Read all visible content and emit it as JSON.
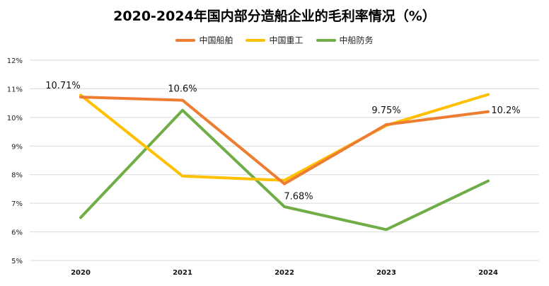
{
  "chart_data": {
    "type": "line",
    "title": "2020-2024年国内部分造船企业的毛利率情况（%）",
    "categories": [
      "2020",
      "2021",
      "2022",
      "2023",
      "2024"
    ],
    "ylim": [
      5,
      12
    ],
    "yticks": [
      "5%",
      "6%",
      "7%",
      "8%",
      "9%",
      "10%",
      "11%",
      "12%"
    ],
    "grid": true,
    "legend": "top-center",
    "series": [
      {
        "name": "中国船舶",
        "color": "#ED7D31",
        "values": [
          10.71,
          10.6,
          7.68,
          9.75,
          10.2
        ]
      },
      {
        "name": "中国重工",
        "color": "#FFC000",
        "values": [
          10.78,
          7.95,
          7.8,
          9.72,
          10.8
        ]
      },
      {
        "name": "中船防务",
        "color": "#70AD47",
        "values": [
          6.5,
          10.25,
          6.88,
          6.08,
          7.78
        ]
      }
    ],
    "data_labels": [
      {
        "series": 0,
        "index": 0,
        "text": "10.71%"
      },
      {
        "series": 0,
        "index": 1,
        "text": "10.6%"
      },
      {
        "series": 0,
        "index": 2,
        "text": "7.68%"
      },
      {
        "series": 0,
        "index": 3,
        "text": "9.75%"
      },
      {
        "series": 0,
        "index": 4,
        "text": "10.2%"
      }
    ]
  }
}
